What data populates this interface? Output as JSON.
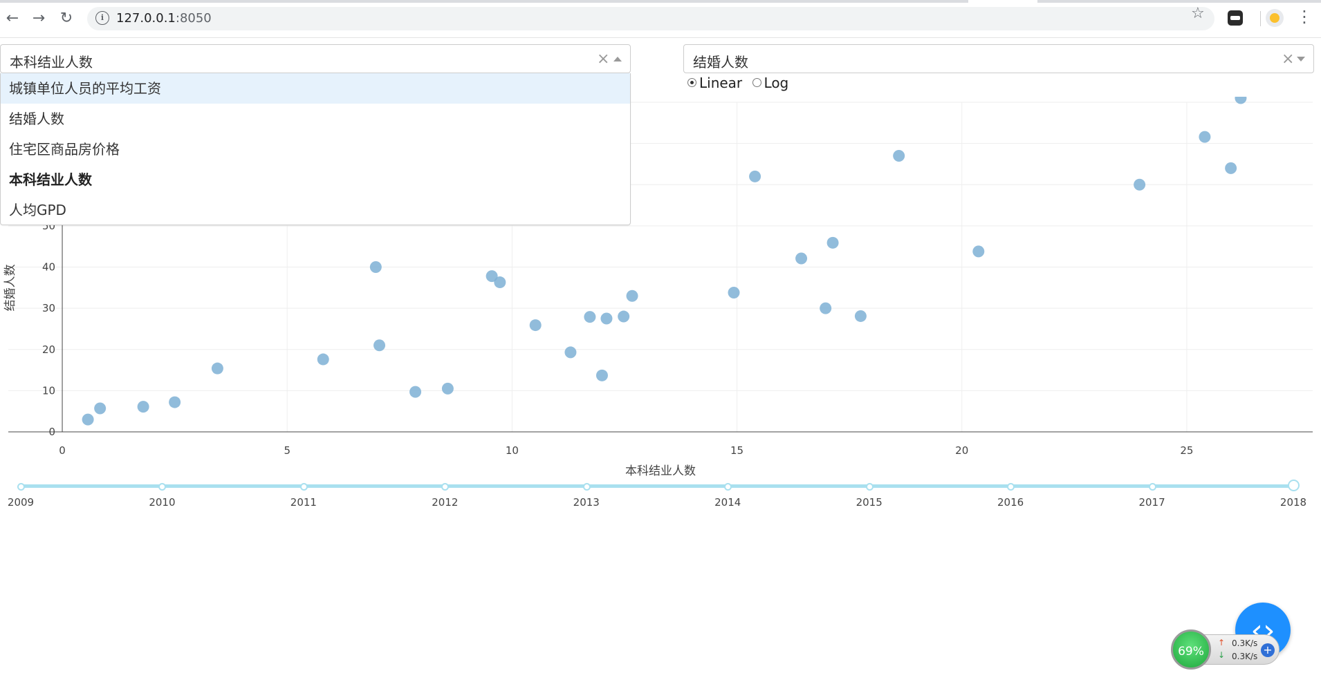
{
  "browser": {
    "url_host": "127.0.0.1",
    "url_port": ":8050"
  },
  "x_dropdown": {
    "value": "本科结业人数",
    "clear_symbol": "×",
    "options": [
      "城镇单位人员的平均工资",
      "结婚人数",
      "住宅区商品房价格",
      "本科结业人数",
      "人均GPD"
    ],
    "focused_index": 0,
    "selected_index": 3
  },
  "y_dropdown": {
    "value": "结婚人数",
    "clear_symbol": "×"
  },
  "scale": {
    "options": [
      "Linear",
      "Log"
    ],
    "selected": "Linear"
  },
  "chart_data": {
    "type": "scatter",
    "xlabel": "本科结业人数",
    "ylabel": "结婚人数",
    "xlim": [
      -1.2,
      27.8
    ],
    "ylim": [
      0,
      80
    ],
    "xticks": [
      0,
      5,
      10,
      15,
      20,
      25
    ],
    "yticks": [
      0,
      10,
      20,
      30,
      40,
      50
    ],
    "grid": true,
    "marker_color": "#7eb0d5",
    "points": [
      [
        0.57,
        3.0
      ],
      [
        0.84,
        5.7
      ],
      [
        1.8,
        6.1
      ],
      [
        2.5,
        7.2
      ],
      [
        3.45,
        15.4
      ],
      [
        5.8,
        17.6
      ],
      [
        6.97,
        40.0
      ],
      [
        7.05,
        21.0
      ],
      [
        7.85,
        9.7
      ],
      [
        8.57,
        10.5
      ],
      [
        9.55,
        37.8
      ],
      [
        9.73,
        36.3
      ],
      [
        10.52,
        25.9
      ],
      [
        11.3,
        19.3
      ],
      [
        11.73,
        27.9
      ],
      [
        12.0,
        13.7
      ],
      [
        12.1,
        27.5
      ],
      [
        12.48,
        28.0
      ],
      [
        12.67,
        33.0
      ],
      [
        14.93,
        33.8
      ],
      [
        15.4,
        62.0
      ],
      [
        16.43,
        42.1
      ],
      [
        16.97,
        30.0
      ],
      [
        17.13,
        45.9
      ],
      [
        17.75,
        28.1
      ],
      [
        18.6,
        67.0
      ],
      [
        20.37,
        43.8
      ],
      [
        23.95,
        60.0
      ],
      [
        25.4,
        71.6
      ],
      [
        25.98,
        64.0
      ],
      [
        26.2,
        81.0
      ]
    ]
  },
  "year_slider": {
    "marks": [
      "2009",
      "2010",
      "2011",
      "2012",
      "2013",
      "2014",
      "2015",
      "2016",
      "2017",
      "2018"
    ],
    "active": "2018"
  },
  "net_monitor": {
    "percent": "69%",
    "up": "0.3K/s",
    "down": "0.3K/s"
  }
}
